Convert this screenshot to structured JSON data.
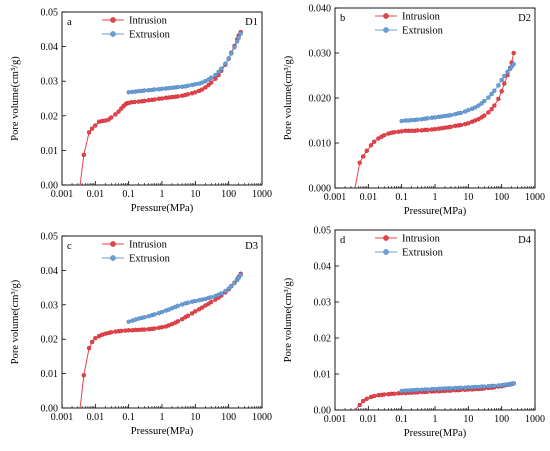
{
  "chart_data": [
    {
      "type": "line",
      "panel_letter": "a",
      "panel_id": "D1",
      "xlabel": "Pressure(MPa)",
      "ylabel": "Pore volume(cm³/g)",
      "xscale": "log",
      "xlim": [
        0.001,
        1000
      ],
      "ylim": [
        0,
        0.05
      ],
      "xticks": [
        0.001,
        0.01,
        0.1,
        1,
        10,
        100,
        1000
      ],
      "xtick_labels": [
        "0.001",
        "0.01",
        "0.1",
        "1",
        "10",
        "100",
        "1000"
      ],
      "yticks": [
        0,
        0.01,
        0.02,
        0.03,
        0.04,
        0.05
      ],
      "ytick_labels": [
        "0.00",
        "0.01",
        "0.02",
        "0.03",
        "0.04",
        "0.05"
      ],
      "legend": "top-center",
      "series": [
        {
          "name": "Intrusion",
          "color": "#e8434b",
          "x": [
            0.0035,
            0.0045,
            0.0065,
            0.008,
            0.01,
            0.013,
            0.016,
            0.02,
            0.025,
            0.03,
            0.04,
            0.05,
            0.06,
            0.07,
            0.08,
            0.09,
            0.1,
            0.12,
            0.15,
            0.2,
            0.25,
            0.3,
            0.4,
            0.5,
            0.6,
            0.8,
            1,
            1.3,
            1.6,
            2,
            2.5,
            3,
            4,
            5,
            6,
            8,
            10,
            13,
            16,
            20,
            25,
            30,
            40,
            50,
            60,
            80,
            100,
            120,
            150,
            180,
            200,
            230
          ],
          "y": [
            0,
            0.0087,
            0.0152,
            0.0163,
            0.0172,
            0.0183,
            0.0185,
            0.0186,
            0.0189,
            0.0195,
            0.0204,
            0.0212,
            0.0221,
            0.0228,
            0.0233,
            0.0236,
            0.0237,
            0.0239,
            0.024,
            0.0241,
            0.0242,
            0.0243,
            0.0245,
            0.0246,
            0.0247,
            0.0249,
            0.025,
            0.0252,
            0.0253,
            0.0254,
            0.0255,
            0.0256,
            0.0258,
            0.026,
            0.0262,
            0.0265,
            0.0268,
            0.0272,
            0.0276,
            0.0282,
            0.0289,
            0.0296,
            0.0307,
            0.0318,
            0.033,
            0.0348,
            0.0365,
            0.0382,
            0.0402,
            0.0421,
            0.0432,
            0.0442
          ]
        },
        {
          "name": "Extrusion",
          "color": "#6b9fd4",
          "x": [
            0.1,
            0.13,
            0.16,
            0.2,
            0.25,
            0.3,
            0.4,
            0.5,
            0.6,
            0.8,
            1,
            1.3,
            1.6,
            2,
            2.5,
            3,
            4,
            5,
            6,
            8,
            10,
            13,
            16,
            20,
            25,
            30,
            40,
            50,
            60,
            80,
            100,
            120,
            150,
            180,
            200,
            230
          ],
          "y": [
            0.0268,
            0.0269,
            0.027,
            0.0271,
            0.0272,
            0.0273,
            0.0274,
            0.0275,
            0.0276,
            0.0277,
            0.0278,
            0.0279,
            0.028,
            0.0281,
            0.0282,
            0.0283,
            0.0284,
            0.0285,
            0.0287,
            0.0289,
            0.0291,
            0.0293,
            0.0296,
            0.03,
            0.0305,
            0.031,
            0.0318,
            0.0327,
            0.0336,
            0.0351,
            0.0366,
            0.038,
            0.0398,
            0.0415,
            0.0426,
            0.0438
          ]
        }
      ]
    },
    {
      "type": "line",
      "panel_letter": "b",
      "panel_id": "D2",
      "xlabel": "Pressure(MPa)",
      "ylabel": "Pore volume(cm³/g)",
      "xscale": "log",
      "xlim": [
        0.001,
        1000
      ],
      "ylim": [
        0,
        0.04
      ],
      "xticks": [
        0.001,
        0.01,
        0.1,
        1,
        10,
        100,
        1000
      ],
      "xtick_labels": [
        "0.001",
        "0.01",
        "0.1",
        "1",
        "10",
        "100",
        "1000"
      ],
      "yticks": [
        0,
        0.01,
        0.02,
        0.03,
        0.04
      ],
      "ytick_labels": [
        "0.000",
        "0.010",
        "0.020",
        "0.030",
        "0.040"
      ],
      "legend": "top-center",
      "series": [
        {
          "name": "Intrusion",
          "color": "#e8434b",
          "x": [
            0.004,
            0.0055,
            0.007,
            0.009,
            0.012,
            0.015,
            0.02,
            0.025,
            0.03,
            0.04,
            0.05,
            0.06,
            0.08,
            0.1,
            0.13,
            0.16,
            0.2,
            0.25,
            0.3,
            0.4,
            0.5,
            0.6,
            0.8,
            1,
            1.3,
            1.6,
            2,
            2.5,
            3,
            4,
            5,
            6,
            8,
            10,
            13,
            16,
            20,
            25,
            30,
            40,
            50,
            60,
            80,
            100,
            120,
            150,
            180,
            200,
            230
          ],
          "y": [
            0,
            0.0056,
            0.007,
            0.0083,
            0.0095,
            0.0103,
            0.011,
            0.0114,
            0.0117,
            0.0121,
            0.0123,
            0.0124,
            0.0125,
            0.0126,
            0.0127,
            0.0127,
            0.0127,
            0.0127,
            0.0128,
            0.0128,
            0.0129,
            0.0129,
            0.013,
            0.0131,
            0.0132,
            0.0133,
            0.0134,
            0.0135,
            0.0136,
            0.0138,
            0.0139,
            0.014,
            0.0142,
            0.0144,
            0.0147,
            0.015,
            0.0153,
            0.0157,
            0.0161,
            0.0168,
            0.0175,
            0.0183,
            0.0198,
            0.0215,
            0.0232,
            0.0251,
            0.0267,
            0.0279,
            0.03
          ]
        },
        {
          "name": "Extrusion",
          "color": "#6b9fd4",
          "x": [
            0.1,
            0.13,
            0.16,
            0.2,
            0.25,
            0.3,
            0.4,
            0.5,
            0.6,
            0.8,
            1,
            1.3,
            1.6,
            2,
            2.5,
            3,
            4,
            5,
            6,
            8,
            10,
            13,
            16,
            20,
            25,
            30,
            40,
            50,
            60,
            80,
            100,
            120,
            150,
            180,
            200,
            230
          ],
          "y": [
            0.0149,
            0.015,
            0.015,
            0.0151,
            0.0151,
            0.0152,
            0.0153,
            0.0154,
            0.0155,
            0.0156,
            0.0157,
            0.0158,
            0.0159,
            0.016,
            0.0161,
            0.0162,
            0.0164,
            0.0166,
            0.0167,
            0.017,
            0.0173,
            0.0176,
            0.0179,
            0.0183,
            0.0188,
            0.0193,
            0.0201,
            0.0209,
            0.0216,
            0.0228,
            0.024,
            0.0249,
            0.0258,
            0.0265,
            0.027,
            0.0275
          ]
        }
      ]
    },
    {
      "type": "line",
      "panel_letter": "c",
      "panel_id": "D3",
      "xlabel": "Pressure(MPa)",
      "ylabel": "Pore volume(cm³/g)",
      "xscale": "log",
      "xlim": [
        0.001,
        1000
      ],
      "ylim": [
        0,
        0.05
      ],
      "xticks": [
        0.001,
        0.01,
        0.1,
        1,
        10,
        100,
        1000
      ],
      "xtick_labels": [
        "0.001",
        "0.01",
        "0.1",
        "1",
        "10",
        "100",
        "1000"
      ],
      "yticks": [
        0,
        0.01,
        0.02,
        0.03,
        0.04,
        0.05
      ],
      "ytick_labels": [
        "0.00",
        "0.01",
        "0.02",
        "0.03",
        "0.04",
        "0.05"
      ],
      "legend": "top-center",
      "series": [
        {
          "name": "Intrusion",
          "color": "#e8434b",
          "x": [
            0.0035,
            0.0045,
            0.0065,
            0.008,
            0.01,
            0.013,
            0.016,
            0.02,
            0.025,
            0.03,
            0.04,
            0.05,
            0.06,
            0.08,
            0.1,
            0.13,
            0.16,
            0.2,
            0.25,
            0.3,
            0.4,
            0.5,
            0.6,
            0.8,
            1,
            1.3,
            1.6,
            2,
            2.5,
            3,
            4,
            5,
            6,
            8,
            10,
            13,
            16,
            20,
            25,
            30,
            40,
            50,
            60,
            80,
            100,
            120,
            150,
            180,
            200,
            230
          ],
          "y": [
            0,
            0.0095,
            0.0174,
            0.0192,
            0.0203,
            0.0209,
            0.0213,
            0.0216,
            0.0218,
            0.022,
            0.0222,
            0.0223,
            0.0224,
            0.0225,
            0.0226,
            0.0226,
            0.0227,
            0.0227,
            0.0228,
            0.0228,
            0.0229,
            0.023,
            0.0231,
            0.0233,
            0.0235,
            0.0237,
            0.024,
            0.0244,
            0.0248,
            0.0252,
            0.0258,
            0.0264,
            0.0268,
            0.0275,
            0.0281,
            0.0287,
            0.0292,
            0.0298,
            0.0303,
            0.0308,
            0.0315,
            0.0321,
            0.0327,
            0.0336,
            0.0345,
            0.0354,
            0.0364,
            0.0374,
            0.0381,
            0.039
          ]
        },
        {
          "name": "Extrusion",
          "color": "#6b9fd4",
          "x": [
            0.1,
            0.13,
            0.16,
            0.2,
            0.25,
            0.3,
            0.4,
            0.5,
            0.6,
            0.8,
            1,
            1.3,
            1.6,
            2,
            2.5,
            3,
            4,
            5,
            6,
            8,
            10,
            13,
            16,
            20,
            25,
            30,
            40,
            50,
            60,
            80,
            100,
            120,
            150,
            180,
            200,
            230
          ],
          "y": [
            0.0251,
            0.0254,
            0.0257,
            0.026,
            0.0262,
            0.0264,
            0.0267,
            0.027,
            0.0272,
            0.0276,
            0.0279,
            0.0283,
            0.0286,
            0.029,
            0.0294,
            0.0297,
            0.0301,
            0.0304,
            0.0306,
            0.0309,
            0.0311,
            0.0313,
            0.0315,
            0.0317,
            0.032,
            0.0322,
            0.0326,
            0.0329,
            0.0333,
            0.034,
            0.0347,
            0.0354,
            0.0363,
            0.0372,
            0.0379,
            0.0387
          ]
        }
      ]
    },
    {
      "type": "line",
      "panel_letter": "d",
      "panel_id": "D4",
      "xlabel": "Pressure(MPa)",
      "ylabel": "Pore volume(cm³/g)",
      "xscale": "log",
      "xlim": [
        0.001,
        1000
      ],
      "ylim": [
        0,
        0.05
      ],
      "xticks": [
        0.001,
        0.01,
        0.1,
        1,
        10,
        100,
        1000
      ],
      "xtick_labels": [
        "0.001",
        "0.01",
        "0.1",
        "1",
        "10",
        "100",
        "1000"
      ],
      "yticks": [
        0,
        0.01,
        0.02,
        0.03,
        0.04,
        0.05
      ],
      "ytick_labels": [
        "0.00",
        "0.01",
        "0.02",
        "0.03",
        "0.04",
        "0.05"
      ],
      "legend": "top-center",
      "series": [
        {
          "name": "Intrusion",
          "color": "#e8434b",
          "x": [
            0.004,
            0.0055,
            0.007,
            0.009,
            0.012,
            0.015,
            0.02,
            0.025,
            0.03,
            0.04,
            0.05,
            0.06,
            0.08,
            0.1,
            0.13,
            0.16,
            0.2,
            0.25,
            0.3,
            0.4,
            0.5,
            0.6,
            0.8,
            1,
            1.3,
            1.6,
            2,
            2.5,
            3,
            4,
            5,
            6,
            8,
            10,
            13,
            16,
            20,
            25,
            30,
            40,
            50,
            60,
            80,
            100,
            120,
            150,
            180,
            200,
            230
          ],
          "y": [
            0,
            0.0014,
            0.0025,
            0.0031,
            0.0036,
            0.0039,
            0.0041,
            0.0042,
            0.0043,
            0.0044,
            0.0045,
            0.0045,
            0.0046,
            0.0047,
            0.0047,
            0.0048,
            0.0048,
            0.0049,
            0.0049,
            0.005,
            0.005,
            0.0051,
            0.0051,
            0.0052,
            0.0052,
            0.0053,
            0.0053,
            0.0054,
            0.0054,
            0.0055,
            0.0055,
            0.0056,
            0.0056,
            0.0057,
            0.0057,
            0.0058,
            0.0058,
            0.0059,
            0.006,
            0.0061,
            0.0062,
            0.0063,
            0.0065,
            0.0066,
            0.0068,
            0.007,
            0.0071,
            0.0072,
            0.0074
          ]
        },
        {
          "name": "Extrusion",
          "color": "#6b9fd4",
          "x": [
            0.1,
            0.13,
            0.16,
            0.2,
            0.25,
            0.3,
            0.4,
            0.5,
            0.6,
            0.8,
            1,
            1.3,
            1.6,
            2,
            2.5,
            3,
            4,
            5,
            6,
            8,
            10,
            13,
            16,
            20,
            25,
            30,
            40,
            50,
            60,
            80,
            100,
            120,
            150,
            180,
            200,
            230
          ],
          "y": [
            0.0053,
            0.0054,
            0.0054,
            0.0055,
            0.0055,
            0.0056,
            0.0056,
            0.0057,
            0.0057,
            0.0058,
            0.0058,
            0.0059,
            0.0059,
            0.006,
            0.006,
            0.006,
            0.0061,
            0.0061,
            0.0062,
            0.0062,
            0.0063,
            0.0063,
            0.0064,
            0.0064,
            0.0065,
            0.0065,
            0.0066,
            0.0067,
            0.0067,
            0.0068,
            0.0069,
            0.007,
            0.0071,
            0.0072,
            0.0073,
            0.0074
          ]
        }
      ]
    }
  ]
}
